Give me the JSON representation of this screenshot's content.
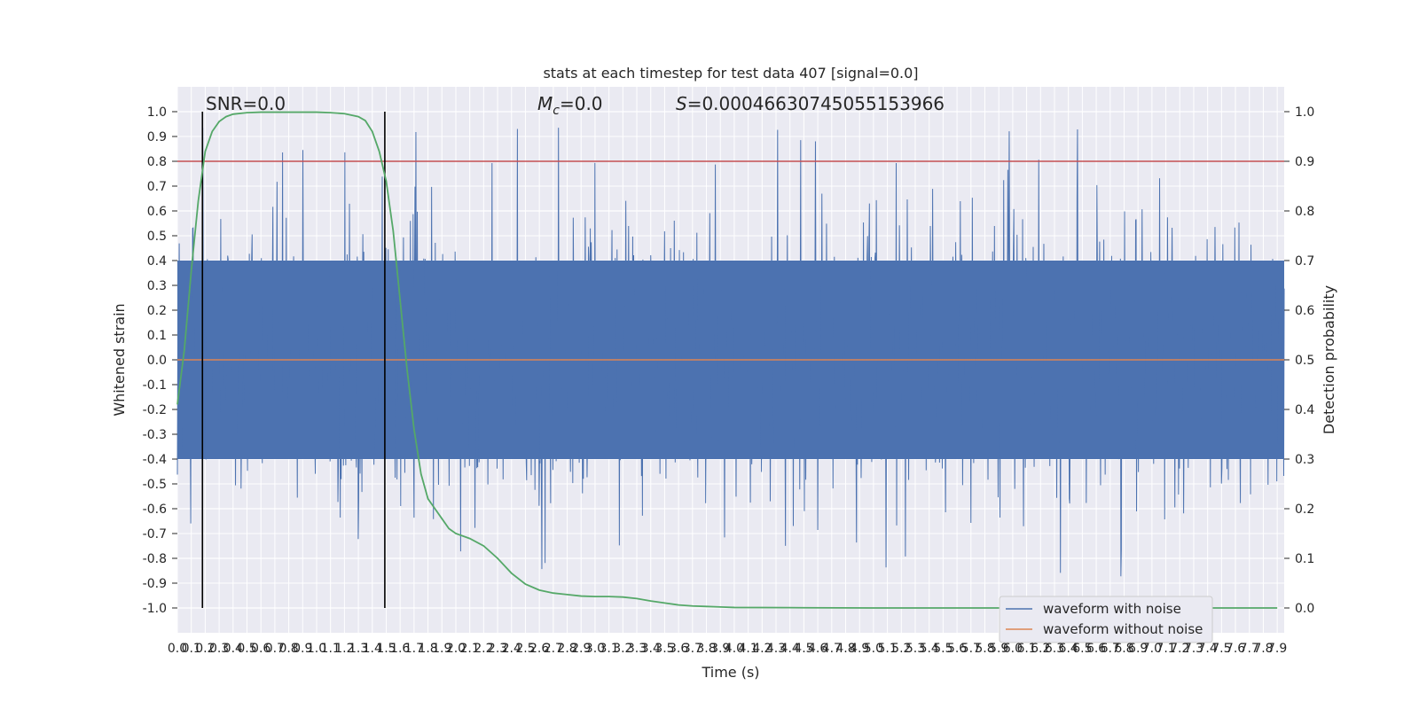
{
  "chart_data": {
    "type": "line",
    "title": "stats at each timestep for test data 407 [signal=0.0]",
    "xlabel": "Time (s)",
    "ylabel": "Whitened strain",
    "y2label": "Detection probability",
    "xlim": [
      0.0,
      7.95
    ],
    "ylim": [
      -1.1,
      1.1
    ],
    "y2lim": [
      -0.05,
      1.05
    ],
    "x_ticks": [
      "0.0",
      "0.1",
      "0.2",
      "0.3",
      "0.4",
      "0.5",
      "0.6",
      "0.7",
      "0.8",
      "0.9",
      "1.0",
      "1.1",
      "1.2",
      "1.3",
      "1.4",
      "1.5",
      "1.6",
      "1.7",
      "1.8",
      "1.9",
      "2.0",
      "2.1",
      "2.2",
      "2.3",
      "2.4",
      "2.5",
      "2.6",
      "2.7",
      "2.8",
      "2.9",
      "3.0",
      "3.1",
      "3.2",
      "3.3",
      "3.4",
      "3.5",
      "3.6",
      "3.7",
      "3.8",
      "3.9",
      "4.0",
      "4.1",
      "4.2",
      "4.3",
      "4.4",
      "4.5",
      "4.6",
      "4.7",
      "4.8",
      "4.9",
      "5.0",
      "5.1",
      "5.2",
      "5.3",
      "5.4",
      "5.5",
      "5.6",
      "5.7",
      "5.8",
      "5.9",
      "6.0",
      "6.1",
      "6.2",
      "6.3",
      "6.4",
      "6.5",
      "6.6",
      "6.7",
      "6.8",
      "6.9",
      "7.0",
      "7.1",
      "7.2",
      "7.3",
      "7.4",
      "7.5",
      "7.6",
      "7.7",
      "7.8",
      "7.9"
    ],
    "y_ticks": [
      "1.0",
      "0.9",
      "0.8",
      "0.7",
      "0.6",
      "0.5",
      "0.4",
      "0.3",
      "0.2",
      "0.1",
      "0.0",
      "-0.1",
      "-0.2",
      "-0.3",
      "-0.4",
      "-0.5",
      "-0.6",
      "-0.7",
      "-0.8",
      "-0.9",
      "-1.0"
    ],
    "y2_ticks": [
      "1.0",
      "0.9",
      "0.8",
      "0.7",
      "0.6",
      "0.5",
      "0.4",
      "0.3",
      "0.2",
      "0.1",
      "0.0"
    ],
    "annotations": {
      "snr": "SNR=0.0",
      "mc": "M",
      "mc_sub": "c",
      "mc_val": "=0.0",
      "s": "S",
      "s_val": "=0.00046630745055153966"
    },
    "vlines_x": [
      0.18,
      1.49
    ],
    "threshold_y2": 0.9,
    "noise_band": {
      "typical_envelope": 0.4,
      "peak_min": -0.98,
      "peak_max": 1.0
    },
    "detection_probability": {
      "x": [
        0.0,
        0.05,
        0.1,
        0.15,
        0.2,
        0.25,
        0.3,
        0.35,
        0.4,
        0.5,
        0.6,
        0.7,
        0.8,
        0.9,
        1.0,
        1.1,
        1.2,
        1.3,
        1.35,
        1.4,
        1.45,
        1.5,
        1.55,
        1.6,
        1.65,
        1.7,
        1.75,
        1.8,
        1.85,
        1.9,
        1.95,
        2.0,
        2.1,
        2.2,
        2.3,
        2.4,
        2.5,
        2.6,
        2.7,
        2.8,
        2.9,
        3.0,
        3.1,
        3.2,
        3.3,
        3.4,
        3.5,
        3.6,
        3.7,
        3.8,
        3.9,
        4.0,
        4.5,
        5.0,
        6.0,
        7.0,
        7.9
      ],
      "y": [
        0.41,
        0.52,
        0.68,
        0.82,
        0.92,
        0.96,
        0.98,
        0.99,
        0.995,
        0.998,
        0.999,
        0.999,
        0.999,
        0.999,
        0.999,
        0.998,
        0.996,
        0.99,
        0.982,
        0.96,
        0.92,
        0.86,
        0.76,
        0.62,
        0.48,
        0.36,
        0.27,
        0.22,
        0.2,
        0.18,
        0.16,
        0.15,
        0.14,
        0.125,
        0.1,
        0.07,
        0.048,
        0.036,
        0.03,
        0.027,
        0.024,
        0.023,
        0.023,
        0.022,
        0.019,
        0.014,
        0.01,
        0.006,
        0.004,
        0.003,
        0.002,
        0.001,
        0.0005,
        0.0,
        0.0,
        0.0,
        0.0
      ]
    },
    "legend": {
      "placement": "lower-right",
      "entries": [
        {
          "label": "waveform with noise",
          "color": "#4c72b0"
        },
        {
          "label": "waveform without noise",
          "color": "#dd8452"
        }
      ]
    },
    "colors": {
      "noise": "#4c72b0",
      "clean": "#dd8452",
      "probability": "#55a868",
      "threshold": "#c44e52",
      "vline": "#000000",
      "plot_bg": "#eaeaf2",
      "grid": "#ffffff"
    }
  }
}
